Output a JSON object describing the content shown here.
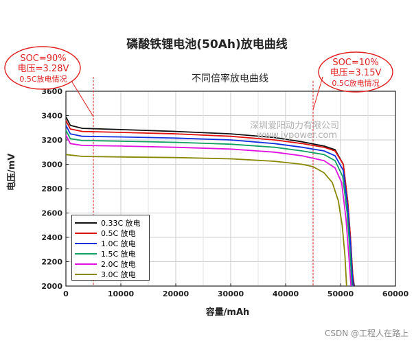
{
  "header": {
    "title": "磷酸铁锂电池(50Ah)放电曲线"
  },
  "annotations": {
    "left": {
      "line1": "SOC=90%",
      "line2": "电压=3.28V",
      "line3": "0.5C放电情况"
    },
    "right": {
      "line1": "SOC=10%",
      "line2": "电压=3.15V",
      "line3": "0.5C放电情况"
    }
  },
  "watermark": {
    "company": "深圳爱阳动力有限公司",
    "url": "www.iypower.com"
  },
  "credit": "CSDN @工程人在路上",
  "colors": {
    "annotation_red": "#e02020",
    "grid": "#cccccc"
  },
  "chart_data": {
    "type": "line",
    "title": "不同倍率放电曲线",
    "xlabel": "容量/mAh",
    "ylabel": "电压/mV",
    "xlim": [
      0,
      60000
    ],
    "ylim": [
      2000,
      3600
    ],
    "xticks": [
      0,
      10000,
      20000,
      30000,
      40000,
      50000,
      60000
    ],
    "yticks": [
      2000,
      2200,
      2400,
      2600,
      2800,
      3000,
      3200,
      3400,
      3600
    ],
    "grid": true,
    "legend_position": "bottom-left",
    "markers": [
      {
        "x": 5000,
        "color": "#e02020",
        "style": "dashed"
      },
      {
        "x": 45000,
        "color": "#e02020",
        "style": "dashed"
      }
    ],
    "series": [
      {
        "name": "0.33C 放电",
        "color": "#111111",
        "points": [
          [
            0,
            3390
          ],
          [
            800,
            3320
          ],
          [
            3000,
            3295
          ],
          [
            10000,
            3285
          ],
          [
            20000,
            3270
          ],
          [
            30000,
            3250
          ],
          [
            38000,
            3220
          ],
          [
            43000,
            3185
          ],
          [
            47000,
            3150
          ],
          [
            49000,
            3120
          ],
          [
            50500,
            3000
          ],
          [
            51300,
            2700
          ],
          [
            51800,
            2400
          ],
          [
            52200,
            2100
          ],
          [
            52500,
            2000
          ]
        ]
      },
      {
        "name": "0.5C 放电",
        "color": "#e01010",
        "points": [
          [
            0,
            3360
          ],
          [
            800,
            3290
          ],
          [
            3000,
            3270
          ],
          [
            10000,
            3262
          ],
          [
            20000,
            3250
          ],
          [
            30000,
            3230
          ],
          [
            38000,
            3200
          ],
          [
            43000,
            3170
          ],
          [
            47000,
            3140
          ],
          [
            49000,
            3110
          ],
          [
            50500,
            3000
          ],
          [
            51300,
            2700
          ],
          [
            51800,
            2400
          ],
          [
            52200,
            2100
          ],
          [
            52400,
            2000
          ]
        ]
      },
      {
        "name": "1.0C 放电",
        "color": "#1030e0",
        "points": [
          [
            0,
            3320
          ],
          [
            800,
            3250
          ],
          [
            3000,
            3230
          ],
          [
            10000,
            3225
          ],
          [
            20000,
            3215
          ],
          [
            30000,
            3200
          ],
          [
            38000,
            3170
          ],
          [
            43000,
            3140
          ],
          [
            47000,
            3110
          ],
          [
            49000,
            3070
          ],
          [
            50500,
            2950
          ],
          [
            51300,
            2650
          ],
          [
            51800,
            2350
          ],
          [
            52200,
            2050
          ],
          [
            52300,
            2000
          ]
        ]
      },
      {
        "name": "1.5C 放电",
        "color": "#10a060",
        "points": [
          [
            0,
            3280
          ],
          [
            800,
            3210
          ],
          [
            3000,
            3195
          ],
          [
            10000,
            3190
          ],
          [
            20000,
            3180
          ],
          [
            30000,
            3165
          ],
          [
            38000,
            3140
          ],
          [
            43000,
            3110
          ],
          [
            47000,
            3080
          ],
          [
            49000,
            3030
          ],
          [
            50400,
            2900
          ],
          [
            51200,
            2600
          ],
          [
            51700,
            2300
          ],
          [
            52100,
            2000
          ]
        ]
      },
      {
        "name": "2.0C 放电",
        "color": "#e010e0",
        "points": [
          [
            0,
            3240
          ],
          [
            800,
            3170
          ],
          [
            3000,
            3155
          ],
          [
            10000,
            3150
          ],
          [
            20000,
            3140
          ],
          [
            30000,
            3125
          ],
          [
            38000,
            3100
          ],
          [
            43000,
            3070
          ],
          [
            47000,
            3030
          ],
          [
            49000,
            2970
          ],
          [
            50200,
            2850
          ],
          [
            51000,
            2550
          ],
          [
            51500,
            2250
          ],
          [
            51900,
            2000
          ]
        ]
      },
      {
        "name": "3.0C 放电",
        "color": "#888800",
        "points": [
          [
            0,
            3080
          ],
          [
            3000,
            3065
          ],
          [
            10000,
            3060
          ],
          [
            20000,
            3055
          ],
          [
            30000,
            3045
          ],
          [
            38000,
            3025
          ],
          [
            43000,
            3000
          ],
          [
            45000,
            2980
          ],
          [
            47000,
            2930
          ],
          [
            48500,
            2850
          ],
          [
            49600,
            2700
          ],
          [
            50300,
            2500
          ],
          [
            50800,
            2250
          ],
          [
            51100,
            2000
          ]
        ]
      }
    ]
  }
}
